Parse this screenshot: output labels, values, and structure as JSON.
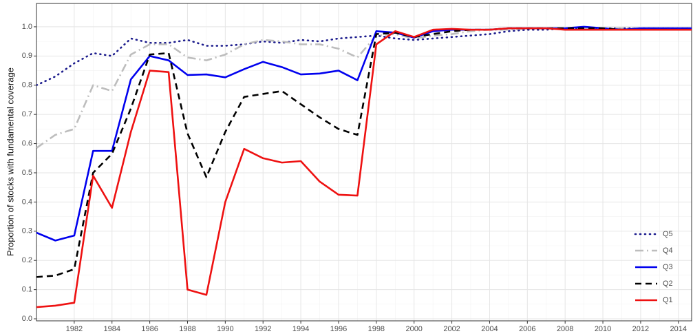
{
  "chart_data": {
    "type": "line",
    "y_label": "Proportion of stocks with fundamental coverage",
    "x": [
      1980,
      1981,
      1982,
      1983,
      1984,
      1985,
      1986,
      1987,
      1988,
      1989,
      1990,
      1991,
      1992,
      1993,
      1994,
      1995,
      1996,
      1997,
      1998,
      1999,
      2000,
      2001,
      2002,
      2003,
      2004,
      2005,
      2006,
      2007,
      2008,
      2009,
      2010,
      2011,
      2012,
      2013,
      2014,
      2015
    ],
    "series": [
      {
        "name": "Q5",
        "color": "#1a1a8c",
        "dash": "dotted",
        "values": [
          0.8,
          0.83,
          0.875,
          0.91,
          0.9,
          0.96,
          0.945,
          0.945,
          0.955,
          0.935,
          0.935,
          0.94,
          0.95,
          0.945,
          0.955,
          0.95,
          0.96,
          0.965,
          0.97,
          0.96,
          0.955,
          0.96,
          0.965,
          0.97,
          0.975,
          0.985,
          0.99,
          0.99,
          0.995,
          0.995,
          0.995,
          0.995,
          0.995,
          0.995,
          0.995,
          0.995
        ]
      },
      {
        "name": "Q4",
        "color": "#bdbdbd",
        "dash": "dashdot",
        "values": [
          0.585,
          0.63,
          0.65,
          0.8,
          0.78,
          0.905,
          0.94,
          0.94,
          0.895,
          0.885,
          0.905,
          0.94,
          0.955,
          0.95,
          0.94,
          0.94,
          0.925,
          0.895,
          0.97,
          0.975,
          0.96,
          0.97,
          0.975,
          0.985,
          0.99,
          0.99,
          0.995,
          0.995,
          0.995,
          0.995,
          0.995,
          0.995,
          0.995,
          0.995,
          0.995,
          0.995
        ]
      },
      {
        "name": "Q3",
        "color": "#0000ee",
        "dash": "solid",
        "values": [
          0.295,
          0.268,
          0.285,
          0.575,
          0.575,
          0.82,
          0.9,
          0.885,
          0.835,
          0.837,
          0.827,
          0.855,
          0.88,
          0.862,
          0.837,
          0.84,
          0.85,
          0.817,
          0.985,
          0.98,
          0.963,
          0.985,
          0.99,
          0.99,
          0.99,
          0.995,
          0.995,
          0.995,
          0.995,
          1.0,
          0.995,
          0.99,
          0.995,
          0.995,
          0.995,
          0.995
        ]
      },
      {
        "name": "Q2",
        "color": "#000000",
        "dash": "dashed",
        "values": [
          0.143,
          0.148,
          0.17,
          0.5,
          0.565,
          0.72,
          0.905,
          0.91,
          0.635,
          0.485,
          0.64,
          0.76,
          0.77,
          0.78,
          0.735,
          0.69,
          0.65,
          0.63,
          0.975,
          0.98,
          0.965,
          0.975,
          0.985,
          0.99,
          0.99,
          0.995,
          0.995,
          0.995,
          0.995,
          0.995,
          0.995,
          0.99,
          0.99,
          0.99,
          0.99,
          0.99
        ]
      },
      {
        "name": "Q1",
        "color": "#ee1111",
        "dash": "solid",
        "values": [
          0.04,
          0.045,
          0.055,
          0.49,
          0.38,
          0.64,
          0.85,
          0.845,
          0.1,
          0.082,
          0.4,
          0.582,
          0.55,
          0.535,
          0.54,
          0.47,
          0.425,
          0.422,
          0.94,
          0.985,
          0.965,
          0.99,
          0.993,
          0.99,
          0.99,
          0.995,
          0.995,
          0.995,
          0.99,
          0.99,
          0.99,
          0.99,
          0.99,
          0.99,
          0.99,
          0.99
        ]
      }
    ],
    "xlim": [
      1980,
      2014.7
    ],
    "xticks": [
      1982,
      1984,
      1986,
      1988,
      1990,
      1992,
      1994,
      1996,
      1998,
      2000,
      2002,
      2004,
      2006,
      2008,
      2010,
      2012,
      2014
    ],
    "ylim": [
      -0.007,
      1.08
    ],
    "yticks": [
      {
        "value": 0,
        "label": "0.0"
      },
      0.1,
      0.2,
      0.3,
      0.4,
      0.5,
      0.6,
      0.7,
      0.8,
      0.9,
      {
        "value": 1,
        "label": "1.0"
      }
    ],
    "grid": true,
    "minor_grid": true,
    "legend": "bottom-right"
  }
}
